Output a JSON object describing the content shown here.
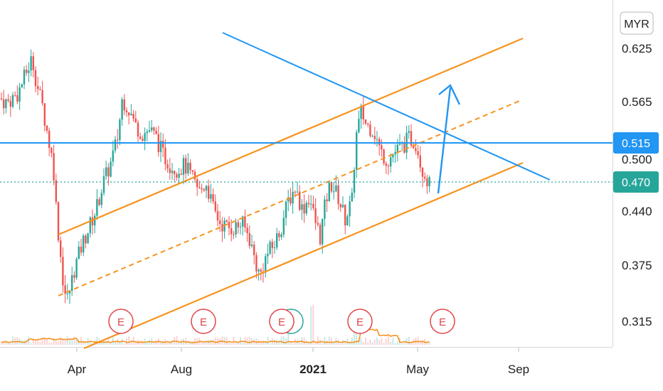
{
  "currency": "MYR",
  "colors": {
    "up": "#26a69a",
    "down": "#ef5350",
    "trend_orange": "#f7931e",
    "trend_blue": "#2196f3",
    "resistance_badge": "#2196f3",
    "price_badge": "#26a69a",
    "earnings": "#e0454a",
    "volume_ma": "#f7931e"
  },
  "chart_data": {
    "type": "candlestick",
    "y_ticks": [
      "0.625",
      "0.565",
      "0.500",
      "0.440",
      "0.375",
      "0.315"
    ],
    "x_ticks": [
      {
        "label": "Apr",
        "bold": false
      },
      {
        "label": "Aug",
        "bold": false
      },
      {
        "label": "2021",
        "bold": true
      },
      {
        "label": "May",
        "bold": false
      },
      {
        "label": "Sep",
        "bold": false
      }
    ],
    "resistance_level": {
      "value": 0.515,
      "label": "0.515"
    },
    "last_price": {
      "value": 0.47,
      "label": "0.470"
    },
    "earnings_markers": [
      "E",
      "E",
      "E",
      "E",
      "E"
    ],
    "price_path": [
      [
        0,
        0.565
      ],
      [
        10,
        0.56
      ],
      [
        25,
        0.57
      ],
      [
        35,
        0.59
      ],
      [
        45,
        0.61
      ],
      [
        52,
        0.58
      ],
      [
        60,
        0.555
      ],
      [
        68,
        0.52
      ],
      [
        75,
        0.49
      ],
      [
        80,
        0.43
      ],
      [
        85,
        0.39
      ],
      [
        90,
        0.35
      ],
      [
        95,
        0.34
      ],
      [
        105,
        0.375
      ],
      [
        115,
        0.4
      ],
      [
        125,
        0.42
      ],
      [
        135,
        0.44
      ],
      [
        145,
        0.47
      ],
      [
        155,
        0.49
      ],
      [
        165,
        0.52
      ],
      [
        172,
        0.565
      ],
      [
        180,
        0.555
      ],
      [
        190,
        0.535
      ],
      [
        200,
        0.525
      ],
      [
        210,
        0.53
      ],
      [
        220,
        0.52
      ],
      [
        230,
        0.5
      ],
      [
        240,
        0.49
      ],
      [
        250,
        0.485
      ],
      [
        260,
        0.49
      ],
      [
        270,
        0.475
      ],
      [
        280,
        0.46
      ],
      [
        290,
        0.47
      ],
      [
        300,
        0.44
      ],
      [
        310,
        0.425
      ],
      [
        320,
        0.42
      ],
      [
        330,
        0.42
      ],
      [
        340,
        0.425
      ],
      [
        350,
        0.41
      ],
      [
        358,
        0.385
      ],
      [
        365,
        0.365
      ],
      [
        375,
        0.39
      ],
      [
        385,
        0.4
      ],
      [
        395,
        0.42
      ],
      [
        405,
        0.45
      ],
      [
        415,
        0.465
      ],
      [
        425,
        0.44
      ],
      [
        435,
        0.455
      ],
      [
        442,
        0.43
      ],
      [
        450,
        0.41
      ],
      [
        458,
        0.45
      ],
      [
        465,
        0.47
      ],
      [
        475,
        0.455
      ],
      [
        485,
        0.43
      ],
      [
        495,
        0.45
      ],
      [
        500,
        0.52
      ],
      [
        508,
        0.55
      ],
      [
        515,
        0.535
      ],
      [
        525,
        0.53
      ],
      [
        535,
        0.505
      ],
      [
        545,
        0.495
      ],
      [
        555,
        0.505
      ],
      [
        565,
        0.51
      ],
      [
        575,
        0.52
      ],
      [
        585,
        0.515
      ],
      [
        592,
        0.49
      ],
      [
        600,
        0.475
      ],
      [
        607,
        0.46
      ]
    ],
    "earnings_x": [
      170,
      286,
      396,
      506,
      622
    ]
  }
}
